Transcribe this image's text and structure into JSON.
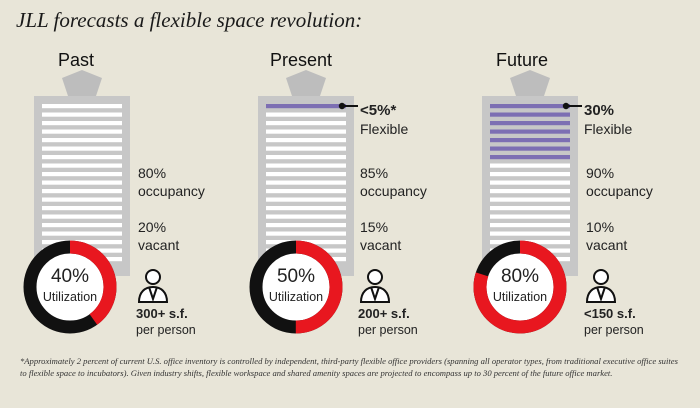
{
  "title": "JLL forecasts a flexible space revolution:",
  "colors": {
    "accent_red": "#e8171f",
    "flex_purple": "#7d6fb3",
    "building_gray": "#c7c7c7",
    "floor_white": "#ffffff",
    "ring_black": "#111111"
  },
  "icons": {
    "person": "person-icon"
  },
  "panels": [
    {
      "label": "Past",
      "flexible_value": "",
      "flexible_label": "",
      "flexible_floors": 0,
      "occupancy_value": "80%",
      "occupancy_label": "occupancy",
      "vacant_value": "20%",
      "vacant_label": "vacant",
      "utilization_value": "40%",
      "utilization_label": "Utilization",
      "utilization_fraction": 0.4,
      "sf_value": "300+ s.f.",
      "sf_label": "per person"
    },
    {
      "label": "Present",
      "flexible_value": "<5%*",
      "flexible_label": "Flexible",
      "flexible_floors": 1,
      "occupancy_value": "85%",
      "occupancy_label": "occupancy",
      "vacant_value": "15%",
      "vacant_label": "vacant",
      "utilization_value": "50%",
      "utilization_label": "Utilization",
      "utilization_fraction": 0.5,
      "sf_value": "200+ s.f.",
      "sf_label": "per person"
    },
    {
      "label": "Future",
      "flexible_value": "30%",
      "flexible_label": "Flexible",
      "flexible_floors": 7,
      "occupancy_value": "90%",
      "occupancy_label": "occupancy",
      "vacant_value": "10%",
      "vacant_label": "vacant",
      "utilization_value": "80%",
      "utilization_label": "Utilization",
      "utilization_fraction": 0.8,
      "sf_value": "<150 s.f.",
      "sf_label": "per person"
    }
  ],
  "footnote": "*Approximately 2 percent of current U.S. office inventory is controlled by independent, third-party flexible office providers (spanning all operator types, from traditional executive office suites to flexible space to incubators). Given industry shifts, flexible workspace and shared amenity spaces are projected to encompass up to 30 percent of the future office market."
}
